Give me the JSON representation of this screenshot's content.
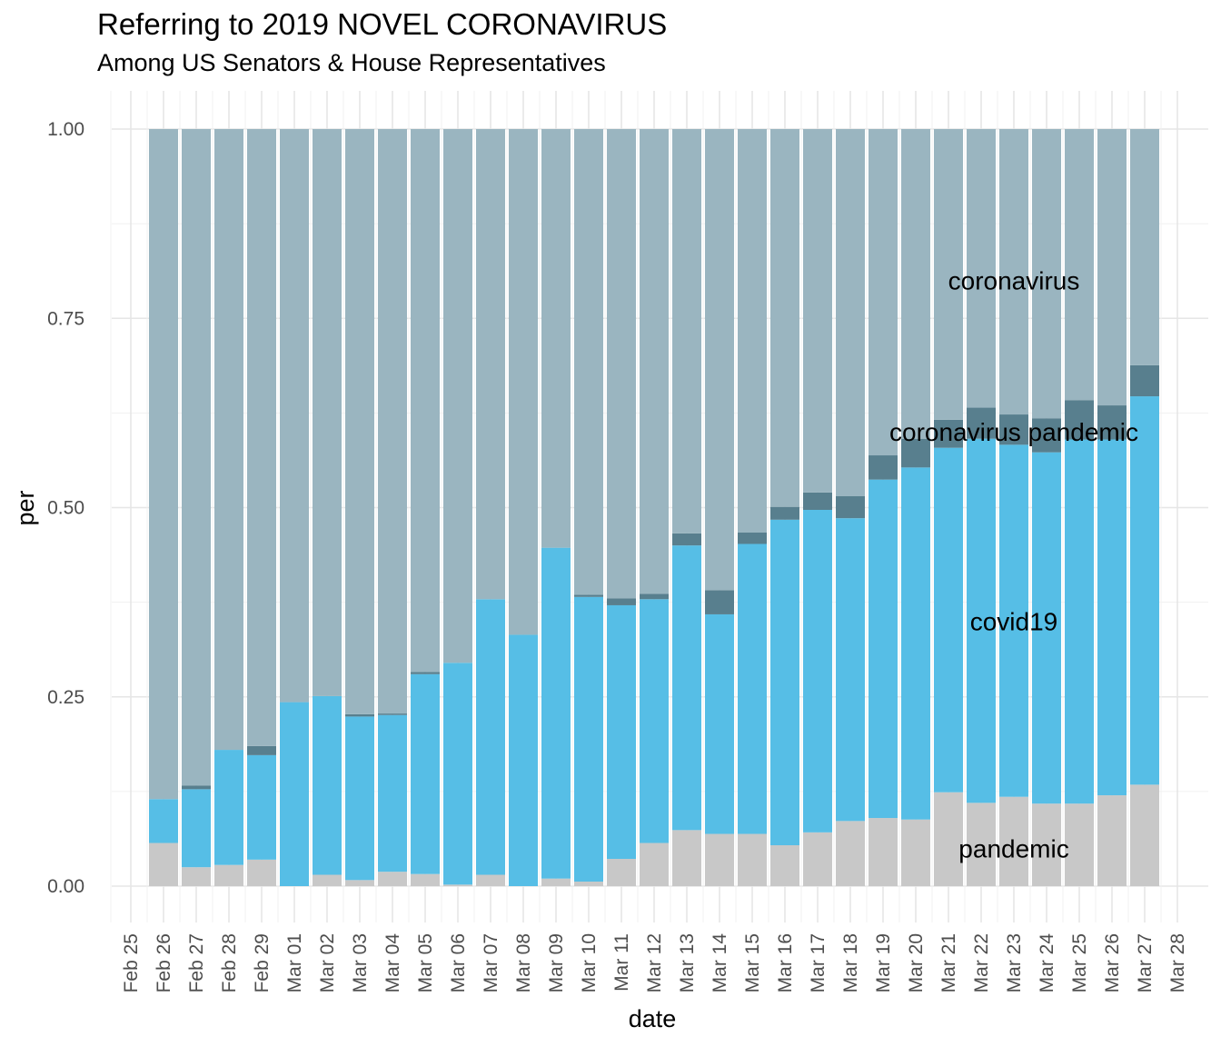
{
  "chart_data": {
    "type": "bar",
    "stacked": true,
    "title": "Referring to 2019 NOVEL CORONAVIRUS",
    "subtitle": "Among US Senators & House Representatives",
    "xlabel": "date",
    "ylabel": "per",
    "ylim": [
      0,
      1
    ],
    "y_ticks": [
      "0.00",
      "0.25",
      "0.50",
      "0.75",
      "1.00"
    ],
    "x_ticks": [
      "Feb 25",
      "Feb 26",
      "Feb 27",
      "Feb 28",
      "Feb 29",
      "Mar 01",
      "Mar 02",
      "Mar 03",
      "Mar 04",
      "Mar 05",
      "Mar 06",
      "Mar 07",
      "Mar 08",
      "Mar 09",
      "Mar 10",
      "Mar 11",
      "Mar 12",
      "Mar 13",
      "Mar 14",
      "Mar 15",
      "Mar 16",
      "Mar 17",
      "Mar 18",
      "Mar 19",
      "Mar 20",
      "Mar 21",
      "Mar 22",
      "Mar 23",
      "Mar 24",
      "Mar 25",
      "Mar 26",
      "Mar 27",
      "Mar 28"
    ],
    "categories": [
      "Feb 26",
      "Feb 27",
      "Feb 28",
      "Feb 29",
      "Mar 01",
      "Mar 02",
      "Mar 03",
      "Mar 04",
      "Mar 05",
      "Mar 06",
      "Mar 07",
      "Mar 08",
      "Mar 09",
      "Mar 10",
      "Mar 11",
      "Mar 12",
      "Mar 13",
      "Mar 14",
      "Mar 15",
      "Mar 16",
      "Mar 17",
      "Mar 18",
      "Mar 19",
      "Mar 20",
      "Mar 21",
      "Mar 22",
      "Mar 23",
      "Mar 24",
      "Mar 25",
      "Mar 26",
      "Mar 27"
    ],
    "series": [
      {
        "name": "pandemic",
        "color": "#c8c8c8",
        "values": [
          0.057,
          0.025,
          0.028,
          0.035,
          0.0,
          0.015,
          0.008,
          0.019,
          0.016,
          0.002,
          0.015,
          0.0,
          0.01,
          0.006,
          0.036,
          0.057,
          0.074,
          0.069,
          0.069,
          0.054,
          0.071,
          0.086,
          0.09,
          0.088,
          0.124,
          0.11,
          0.118,
          0.109,
          0.109,
          0.12,
          0.134
        ]
      },
      {
        "name": "covid19",
        "color": "#56bee6",
        "values": [
          0.058,
          0.103,
          0.152,
          0.138,
          0.243,
          0.236,
          0.216,
          0.207,
          0.264,
          0.293,
          0.364,
          0.332,
          0.437,
          0.376,
          0.335,
          0.322,
          0.376,
          0.29,
          0.383,
          0.43,
          0.426,
          0.4,
          0.447,
          0.465,
          0.455,
          0.481,
          0.465,
          0.464,
          0.481,
          0.47,
          0.513
        ]
      },
      {
        "name": "coronavirus pandemic",
        "color": "#587f8e",
        "values": [
          0.0,
          0.005,
          0.0,
          0.012,
          0.0,
          0.0,
          0.003,
          0.002,
          0.003,
          0.0,
          0.0,
          0.0,
          0.0,
          0.003,
          0.009,
          0.007,
          0.016,
          0.032,
          0.015,
          0.017,
          0.023,
          0.029,
          0.032,
          0.038,
          0.037,
          0.041,
          0.04,
          0.045,
          0.052,
          0.045,
          0.041
        ]
      },
      {
        "name": "coronavirus",
        "color": "#9ab5c0",
        "values": [
          0.885,
          0.867,
          0.82,
          0.815,
          0.757,
          0.749,
          0.773,
          0.772,
          0.717,
          0.705,
          0.621,
          0.668,
          0.553,
          0.615,
          0.62,
          0.614,
          0.534,
          0.609,
          0.533,
          0.499,
          0.48,
          0.485,
          0.431,
          0.409,
          0.384,
          0.368,
          0.377,
          0.382,
          0.358,
          0.365,
          0.312
        ]
      }
    ],
    "annotations": [
      {
        "text": "coronavirus",
        "x": "Mar 23",
        "y": 0.8
      },
      {
        "text": "coronavirus pandemic",
        "x": "Mar 23",
        "y": 0.6
      },
      {
        "text": "covid19",
        "x": "Mar 23",
        "y": 0.35
      },
      {
        "text": "pandemic",
        "x": "Mar 23",
        "y": 0.05
      }
    ],
    "grid": true,
    "legend": "none"
  }
}
